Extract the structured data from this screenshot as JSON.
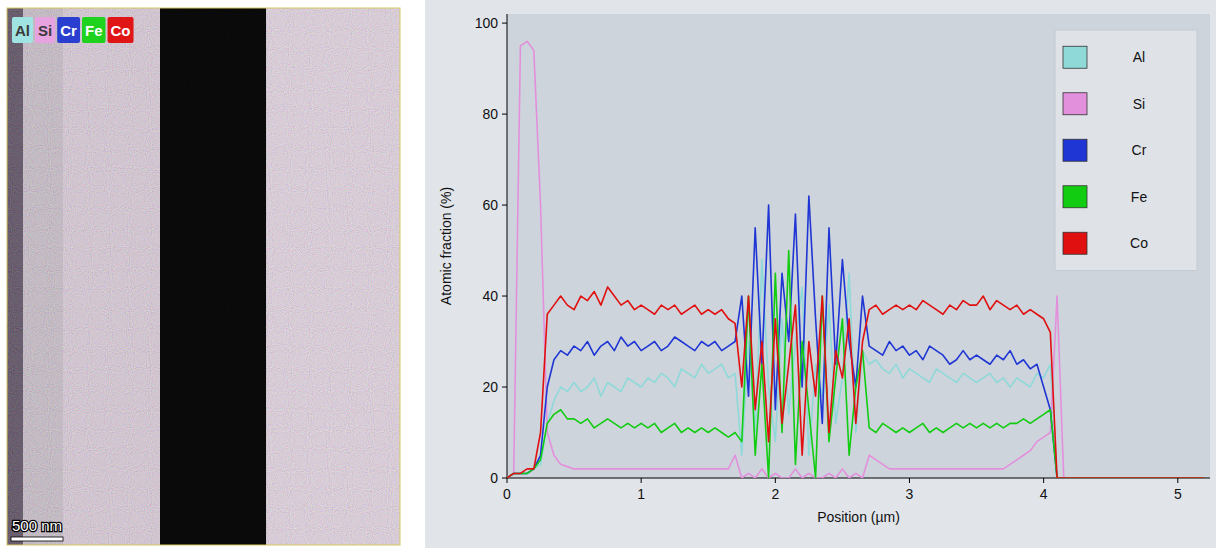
{
  "chart_data": {
    "type": "line",
    "xlabel": "Position (µm)",
    "ylabel": "Atomic fraction (%)",
    "x": [
      0,
      0.05,
      0.1,
      0.15,
      0.2,
      0.25,
      0.3,
      0.35,
      0.4,
      0.45,
      0.5,
      0.55,
      0.6,
      0.65,
      0.7,
      0.75,
      0.8,
      0.85,
      0.9,
      0.95,
      1,
      1.05,
      1.1,
      1.15,
      1.2,
      1.25,
      1.3,
      1.35,
      1.4,
      1.45,
      1.5,
      1.55,
      1.6,
      1.65,
      1.7,
      1.75,
      1.8,
      1.85,
      1.9,
      1.95,
      2,
      2.05,
      2.1,
      2.15,
      2.2,
      2.25,
      2.3,
      2.35,
      2.4,
      2.45,
      2.5,
      2.55,
      2.6,
      2.65,
      2.7,
      2.75,
      2.8,
      2.85,
      2.9,
      2.95,
      3,
      3.05,
      3.1,
      3.15,
      3.2,
      3.25,
      3.3,
      3.35,
      3.4,
      3.45,
      3.5,
      3.55,
      3.6,
      3.65,
      3.7,
      3.75,
      3.8,
      3.85,
      3.9,
      3.95,
      4,
      4.05,
      4.1,
      4.15,
      4.2,
      4.25,
      4.3,
      4.35,
      4.4,
      4.45,
      4.5,
      4.55,
      4.6,
      4.65,
      4.7,
      4.75,
      4.8,
      4.85,
      4.9,
      4.95,
      5,
      5.05,
      5.1,
      5.15,
      5.2
    ],
    "series": [
      {
        "name": "Al",
        "color": "#8fd9d9",
        "values": [
          0,
          1,
          1,
          1,
          2,
          3,
          12,
          17,
          20,
          19,
          21,
          19,
          20,
          22,
          18,
          21,
          20,
          19,
          22,
          21,
          20,
          22,
          21,
          23,
          22,
          20,
          24,
          23,
          22,
          25,
          23,
          24,
          25,
          22,
          23,
          5,
          30,
          10,
          48,
          20,
          8,
          35,
          14,
          30,
          42,
          5,
          25,
          18,
          38,
          12,
          22,
          45,
          10,
          28,
          25,
          26,
          24,
          23,
          25,
          22,
          24,
          23,
          22,
          21,
          24,
          23,
          22,
          21,
          23,
          22,
          21,
          22,
          23,
          21,
          22,
          20,
          22,
          21,
          20,
          23,
          22,
          25,
          0,
          0,
          0,
          0,
          0,
          0,
          0,
          0,
          0,
          0,
          0,
          0,
          0,
          0,
          0,
          0,
          0,
          0,
          0,
          0,
          0,
          0,
          0
        ]
      },
      {
        "name": "Si",
        "color": "#e390dc",
        "values": [
          0,
          1,
          95,
          96,
          94,
          60,
          10,
          5,
          3,
          2.5,
          2,
          2,
          2,
          2,
          2,
          2,
          2,
          2,
          2,
          2,
          2,
          2,
          2,
          2,
          2,
          2,
          2,
          2,
          2,
          2,
          2,
          2,
          2,
          2,
          5,
          0,
          1,
          0,
          2,
          0,
          1,
          0,
          0,
          2,
          0,
          1,
          0,
          0,
          1,
          0,
          2,
          0,
          1,
          0,
          5,
          4,
          3,
          2,
          2,
          2,
          2,
          2,
          2,
          2,
          2,
          2,
          2,
          2,
          2,
          2,
          2,
          2,
          2,
          2,
          2,
          3,
          4,
          5,
          6,
          8,
          9,
          10,
          40,
          0,
          0,
          0,
          0,
          0,
          0,
          0,
          0,
          0,
          0,
          0,
          0,
          0,
          0,
          0,
          0,
          0,
          0,
          0,
          0,
          0,
          0
        ]
      },
      {
        "name": "Cr",
        "color": "#1f36d4",
        "values": [
          0,
          1,
          1,
          1,
          2,
          5,
          20,
          26,
          28,
          27,
          29,
          28,
          30,
          27,
          29,
          30,
          28,
          31,
          29,
          30,
          28,
          29,
          30,
          28,
          29,
          31,
          30,
          29,
          28,
          30,
          29,
          30,
          28,
          29,
          30,
          40,
          18,
          55,
          25,
          60,
          15,
          45,
          30,
          58,
          20,
          62,
          35,
          12,
          55,
          25,
          48,
          30,
          20,
          40,
          29,
          28,
          27,
          30,
          28,
          29,
          27,
          28,
          26,
          29,
          28,
          27,
          25,
          26,
          28,
          26,
          27,
          26,
          25,
          27,
          26,
          28,
          25,
          26,
          24,
          25,
          20,
          15,
          0,
          0,
          0,
          0,
          0,
          0,
          0,
          0,
          0,
          0,
          0,
          0,
          0,
          0,
          0,
          0,
          0,
          0,
          0,
          0,
          0,
          0,
          0
        ]
      },
      {
        "name": "Fe",
        "color": "#12cc12",
        "values": [
          0,
          1,
          1,
          1,
          2,
          4,
          12,
          14,
          15,
          13,
          13,
          12,
          13,
          11,
          12,
          13,
          12,
          11,
          12,
          11,
          12,
          11,
          12,
          10,
          11,
          12,
          10,
          11,
          10,
          11,
          10,
          11,
          10,
          9,
          10,
          8,
          40,
          5,
          25,
          0,
          45,
          10,
          50,
          3,
          30,
          15,
          0,
          40,
          8,
          22,
          35,
          5,
          20,
          28,
          11,
          10,
          12,
          11,
          10,
          11,
          10,
          11,
          12,
          10,
          11,
          10,
          11,
          12,
          11,
          12,
          11,
          12,
          11,
          12,
          11,
          12,
          12,
          13,
          12,
          13,
          14,
          15,
          0,
          0,
          0,
          0,
          0,
          0,
          0,
          0,
          0,
          0,
          0,
          0,
          0,
          0,
          0,
          0,
          0,
          0,
          0,
          0,
          0,
          0,
          0
        ]
      },
      {
        "name": "Co",
        "color": "#e01010",
        "values": [
          0,
          1,
          1,
          2,
          2,
          10,
          36,
          38,
          40,
          38,
          37,
          40,
          39,
          41,
          38,
          42,
          40,
          38,
          39,
          37,
          38,
          37,
          36,
          38,
          37,
          38,
          36,
          37,
          38,
          36,
          37,
          36,
          37,
          35,
          34,
          20,
          40,
          15,
          30,
          8,
          35,
          12,
          25,
          38,
          5,
          30,
          18,
          40,
          10,
          28,
          22,
          35,
          12,
          30,
          37,
          38,
          36,
          37,
          38,
          37,
          38,
          37,
          39,
          38,
          37,
          36,
          38,
          37,
          39,
          38,
          38,
          40,
          37,
          39,
          38,
          37,
          38,
          36,
          37,
          36,
          35,
          32,
          0,
          0,
          0,
          0,
          0,
          0,
          0,
          0,
          0,
          0,
          0,
          0,
          0,
          0,
          0,
          0,
          0,
          0,
          0,
          0,
          0,
          0,
          0
        ]
      }
    ],
    "xlim": [
      0,
      5.24
    ],
    "ylim": [
      0,
      102
    ],
    "xticks": [
      0,
      1,
      2,
      3,
      4,
      5
    ],
    "yticks": [
      0,
      20,
      40,
      60,
      80,
      100
    ],
    "grid": false,
    "legend": "upper right"
  },
  "eds_map": {
    "elements": [
      {
        "name": "Al",
        "color": "#9fe3e3"
      },
      {
        "name": "Si",
        "color": "#e7a3e0"
      },
      {
        "name": "Cr",
        "color": "#2a3fd0"
      },
      {
        "name": "Fe",
        "color": "#1ed21e"
      },
      {
        "name": "Co",
        "color": "#e01515"
      }
    ],
    "scale_bar": "500 nm"
  }
}
